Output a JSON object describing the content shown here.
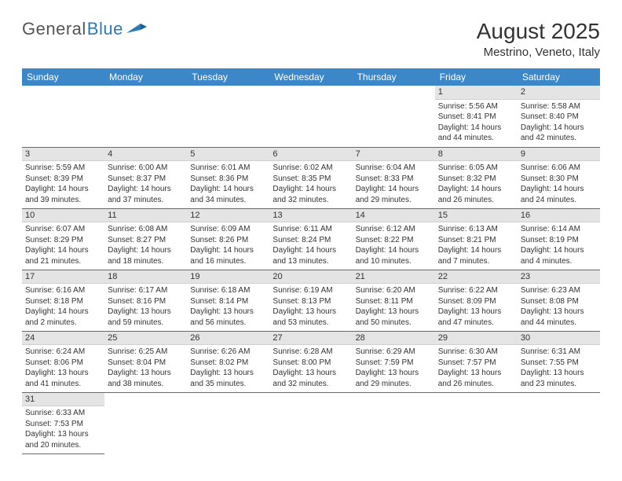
{
  "logo": {
    "text1": "General",
    "text2": "Blue",
    "icon_color": "#2a7ab9",
    "text1_color": "#555555"
  },
  "title": "August 2025",
  "location": "Mestrino, Veneto, Italy",
  "header_bg": "#3b87c8",
  "header_fg": "#ffffff",
  "daynum_bg": "#e4e4e4",
  "border_color": "#2a7ab9",
  "text_color": "#333333",
  "daynames": [
    "Sunday",
    "Monday",
    "Tuesday",
    "Wednesday",
    "Thursday",
    "Friday",
    "Saturday"
  ],
  "weeks": [
    [
      null,
      null,
      null,
      null,
      null,
      {
        "n": "1",
        "sr": "Sunrise: 5:56 AM",
        "ss": "Sunset: 8:41 PM",
        "dl": "Daylight: 14 hours and 44 minutes."
      },
      {
        "n": "2",
        "sr": "Sunrise: 5:58 AM",
        "ss": "Sunset: 8:40 PM",
        "dl": "Daylight: 14 hours and 42 minutes."
      }
    ],
    [
      {
        "n": "3",
        "sr": "Sunrise: 5:59 AM",
        "ss": "Sunset: 8:39 PM",
        "dl": "Daylight: 14 hours and 39 minutes."
      },
      {
        "n": "4",
        "sr": "Sunrise: 6:00 AM",
        "ss": "Sunset: 8:37 PM",
        "dl": "Daylight: 14 hours and 37 minutes."
      },
      {
        "n": "5",
        "sr": "Sunrise: 6:01 AM",
        "ss": "Sunset: 8:36 PM",
        "dl": "Daylight: 14 hours and 34 minutes."
      },
      {
        "n": "6",
        "sr": "Sunrise: 6:02 AM",
        "ss": "Sunset: 8:35 PM",
        "dl": "Daylight: 14 hours and 32 minutes."
      },
      {
        "n": "7",
        "sr": "Sunrise: 6:04 AM",
        "ss": "Sunset: 8:33 PM",
        "dl": "Daylight: 14 hours and 29 minutes."
      },
      {
        "n": "8",
        "sr": "Sunrise: 6:05 AM",
        "ss": "Sunset: 8:32 PM",
        "dl": "Daylight: 14 hours and 26 minutes."
      },
      {
        "n": "9",
        "sr": "Sunrise: 6:06 AM",
        "ss": "Sunset: 8:30 PM",
        "dl": "Daylight: 14 hours and 24 minutes."
      }
    ],
    [
      {
        "n": "10",
        "sr": "Sunrise: 6:07 AM",
        "ss": "Sunset: 8:29 PM",
        "dl": "Daylight: 14 hours and 21 minutes."
      },
      {
        "n": "11",
        "sr": "Sunrise: 6:08 AM",
        "ss": "Sunset: 8:27 PM",
        "dl": "Daylight: 14 hours and 18 minutes."
      },
      {
        "n": "12",
        "sr": "Sunrise: 6:09 AM",
        "ss": "Sunset: 8:26 PM",
        "dl": "Daylight: 14 hours and 16 minutes."
      },
      {
        "n": "13",
        "sr": "Sunrise: 6:11 AM",
        "ss": "Sunset: 8:24 PM",
        "dl": "Daylight: 14 hours and 13 minutes."
      },
      {
        "n": "14",
        "sr": "Sunrise: 6:12 AM",
        "ss": "Sunset: 8:22 PM",
        "dl": "Daylight: 14 hours and 10 minutes."
      },
      {
        "n": "15",
        "sr": "Sunrise: 6:13 AM",
        "ss": "Sunset: 8:21 PM",
        "dl": "Daylight: 14 hours and 7 minutes."
      },
      {
        "n": "16",
        "sr": "Sunrise: 6:14 AM",
        "ss": "Sunset: 8:19 PM",
        "dl": "Daylight: 14 hours and 4 minutes."
      }
    ],
    [
      {
        "n": "17",
        "sr": "Sunrise: 6:16 AM",
        "ss": "Sunset: 8:18 PM",
        "dl": "Daylight: 14 hours and 2 minutes."
      },
      {
        "n": "18",
        "sr": "Sunrise: 6:17 AM",
        "ss": "Sunset: 8:16 PM",
        "dl": "Daylight: 13 hours and 59 minutes."
      },
      {
        "n": "19",
        "sr": "Sunrise: 6:18 AM",
        "ss": "Sunset: 8:14 PM",
        "dl": "Daylight: 13 hours and 56 minutes."
      },
      {
        "n": "20",
        "sr": "Sunrise: 6:19 AM",
        "ss": "Sunset: 8:13 PM",
        "dl": "Daylight: 13 hours and 53 minutes."
      },
      {
        "n": "21",
        "sr": "Sunrise: 6:20 AM",
        "ss": "Sunset: 8:11 PM",
        "dl": "Daylight: 13 hours and 50 minutes."
      },
      {
        "n": "22",
        "sr": "Sunrise: 6:22 AM",
        "ss": "Sunset: 8:09 PM",
        "dl": "Daylight: 13 hours and 47 minutes."
      },
      {
        "n": "23",
        "sr": "Sunrise: 6:23 AM",
        "ss": "Sunset: 8:08 PM",
        "dl": "Daylight: 13 hours and 44 minutes."
      }
    ],
    [
      {
        "n": "24",
        "sr": "Sunrise: 6:24 AM",
        "ss": "Sunset: 8:06 PM",
        "dl": "Daylight: 13 hours and 41 minutes."
      },
      {
        "n": "25",
        "sr": "Sunrise: 6:25 AM",
        "ss": "Sunset: 8:04 PM",
        "dl": "Daylight: 13 hours and 38 minutes."
      },
      {
        "n": "26",
        "sr": "Sunrise: 6:26 AM",
        "ss": "Sunset: 8:02 PM",
        "dl": "Daylight: 13 hours and 35 minutes."
      },
      {
        "n": "27",
        "sr": "Sunrise: 6:28 AM",
        "ss": "Sunset: 8:00 PM",
        "dl": "Daylight: 13 hours and 32 minutes."
      },
      {
        "n": "28",
        "sr": "Sunrise: 6:29 AM",
        "ss": "Sunset: 7:59 PM",
        "dl": "Daylight: 13 hours and 29 minutes."
      },
      {
        "n": "29",
        "sr": "Sunrise: 6:30 AM",
        "ss": "Sunset: 7:57 PM",
        "dl": "Daylight: 13 hours and 26 minutes."
      },
      {
        "n": "30",
        "sr": "Sunrise: 6:31 AM",
        "ss": "Sunset: 7:55 PM",
        "dl": "Daylight: 13 hours and 23 minutes."
      }
    ],
    [
      {
        "n": "31",
        "sr": "Sunrise: 6:33 AM",
        "ss": "Sunset: 7:53 PM",
        "dl": "Daylight: 13 hours and 20 minutes."
      },
      null,
      null,
      null,
      null,
      null,
      null
    ]
  ]
}
